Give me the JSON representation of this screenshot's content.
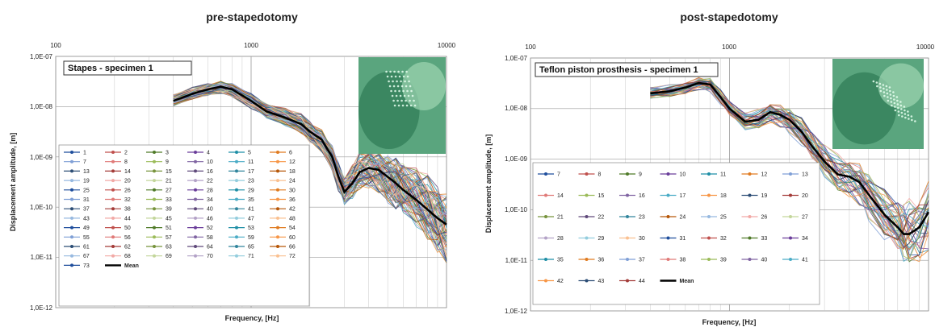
{
  "chart_data": [
    {
      "type": "line",
      "title": "pre-stapedotomy",
      "annotation": "Stapes - specimen 1",
      "xlabel": "Frequency,  [Hz]",
      "ylabel": "Displacement amplitude,  [m]",
      "xscale": "log",
      "yscale": "log",
      "xlim": [
        100,
        10000
      ],
      "ylim": [
        1e-12,
        1e-07
      ],
      "x_tick_labels": [
        "100",
        "1000",
        "10000"
      ],
      "y_tick_labels": [
        "1,0E-12",
        "1,0E-11",
        "1,0E-10",
        "1,0E-09",
        "1,0E-08",
        "1,0E-07"
      ],
      "grid": true,
      "legend_placement": "bottom-left, inside plot",
      "series_names": [
        "1",
        "2",
        "3",
        "4",
        "5",
        "6",
        "7",
        "8",
        "9",
        "10",
        "11",
        "12",
        "13",
        "14",
        "15",
        "16",
        "17",
        "18",
        "19",
        "20",
        "21",
        "22",
        "23",
        "24",
        "25",
        "26",
        "27",
        "28",
        "29",
        "30",
        "31",
        "32",
        "33",
        "34",
        "35",
        "36",
        "37",
        "38",
        "39",
        "40",
        "41",
        "42",
        "43",
        "44",
        "45",
        "46",
        "47",
        "48",
        "49",
        "50",
        "51",
        "52",
        "53",
        "54",
        "55",
        "56",
        "57",
        "58",
        "59",
        "60",
        "61",
        "62",
        "63",
        "64",
        "65",
        "66",
        "67",
        "68",
        "69",
        "70",
        "71",
        "72",
        "73",
        "Mean"
      ],
      "mean": {
        "name": "Mean",
        "x": [
          400,
          500,
          600,
          700,
          800,
          1000,
          1200,
          1500,
          1800,
          2000,
          2300,
          2600,
          2800,
          3000,
          3300,
          3600,
          4000,
          4500,
          5000,
          5500,
          6000,
          7000,
          8000,
          9000,
          10000
        ],
        "y": [
          1.3e-08,
          1.8e-08,
          2.2e-08,
          2.5e-08,
          2.2e-08,
          1.3e-08,
          8e-09,
          6e-09,
          4.5e-09,
          3.2e-09,
          2.2e-09,
          1e-09,
          4e-10,
          2e-10,
          3e-10,
          5e-10,
          6e-10,
          5.5e-10,
          4e-10,
          3e-10,
          2.2e-10,
          1.4e-10,
          9e-11,
          6e-11,
          4.5e-11
        ]
      }
    },
    {
      "type": "line",
      "title": "post-stapedotomy",
      "annotation": "Teflon piston prosthesis - specimen 1",
      "xlabel": "Frequency,  [Hz]",
      "ylabel": "Displacement amplitude,  [m]",
      "xscale": "log",
      "yscale": "log",
      "xlim": [
        100,
        10000
      ],
      "ylim": [
        1e-12,
        1e-07
      ],
      "x_tick_labels": [
        "100",
        "1000",
        "10000"
      ],
      "y_tick_labels": [
        "1,0E-12",
        "1,0E-11",
        "1,0E-10",
        "1,0E-09",
        "1,0E-08",
        "1,0E-07"
      ],
      "grid": true,
      "legend_placement": "bottom-left, inside plot",
      "series_names": [
        "7",
        "8",
        "9",
        "10",
        "11",
        "12",
        "13",
        "14",
        "15",
        "16",
        "17",
        "18",
        "19",
        "20",
        "21",
        "22",
        "23",
        "24",
        "25",
        "26",
        "27",
        "28",
        "29",
        "30",
        "31",
        "32",
        "33",
        "34",
        "35",
        "36",
        "37",
        "38",
        "39",
        "40",
        "41",
        "42",
        "43",
        "44",
        "Mean"
      ],
      "mean": {
        "name": "Mean",
        "x": [
          400,
          500,
          600,
          700,
          800,
          900,
          1000,
          1200,
          1400,
          1600,
          1800,
          2000,
          2300,
          2600,
          3000,
          3500,
          4000,
          4500,
          5000,
          6000,
          7000,
          7500,
          8000,
          9000,
          10000
        ],
        "y": [
          2e-08,
          2.2e-08,
          2.6e-08,
          3.2e-08,
          3e-08,
          1.7e-08,
          1e-08,
          5.5e-09,
          6e-09,
          8.5e-09,
          7.5e-09,
          6e-09,
          3.5e-09,
          1.8e-09,
          9e-10,
          5e-10,
          4.5e-10,
          3.5e-10,
          2e-10,
          8e-11,
          4.5e-11,
          3.3e-11,
          3.3e-11,
          4.5e-11,
          9e-11
        ]
      }
    }
  ],
  "legend_colors": [
    "#1f4e9c",
    "#c0504d",
    "#4f7a28",
    "#6a3d9a",
    "#1f8fa6",
    "#e07b20",
    "#7f9fd6",
    "#e07a78",
    "#9bbb59",
    "#8064a2",
    "#4bacc6",
    "#f79646",
    "#2c4d75",
    "#a33b38",
    "#77933c",
    "#5f497a",
    "#31859c",
    "#b65708",
    "#97b9e0",
    "#f2a9a6",
    "#c3d69b",
    "#b3a2c7",
    "#93cddd",
    "#fac090"
  ],
  "mean_color": "#000000",
  "photo_colors": {
    "dark": "#2e7a55",
    "mid": "#5aa57e",
    "light": "#9ed6b2"
  }
}
